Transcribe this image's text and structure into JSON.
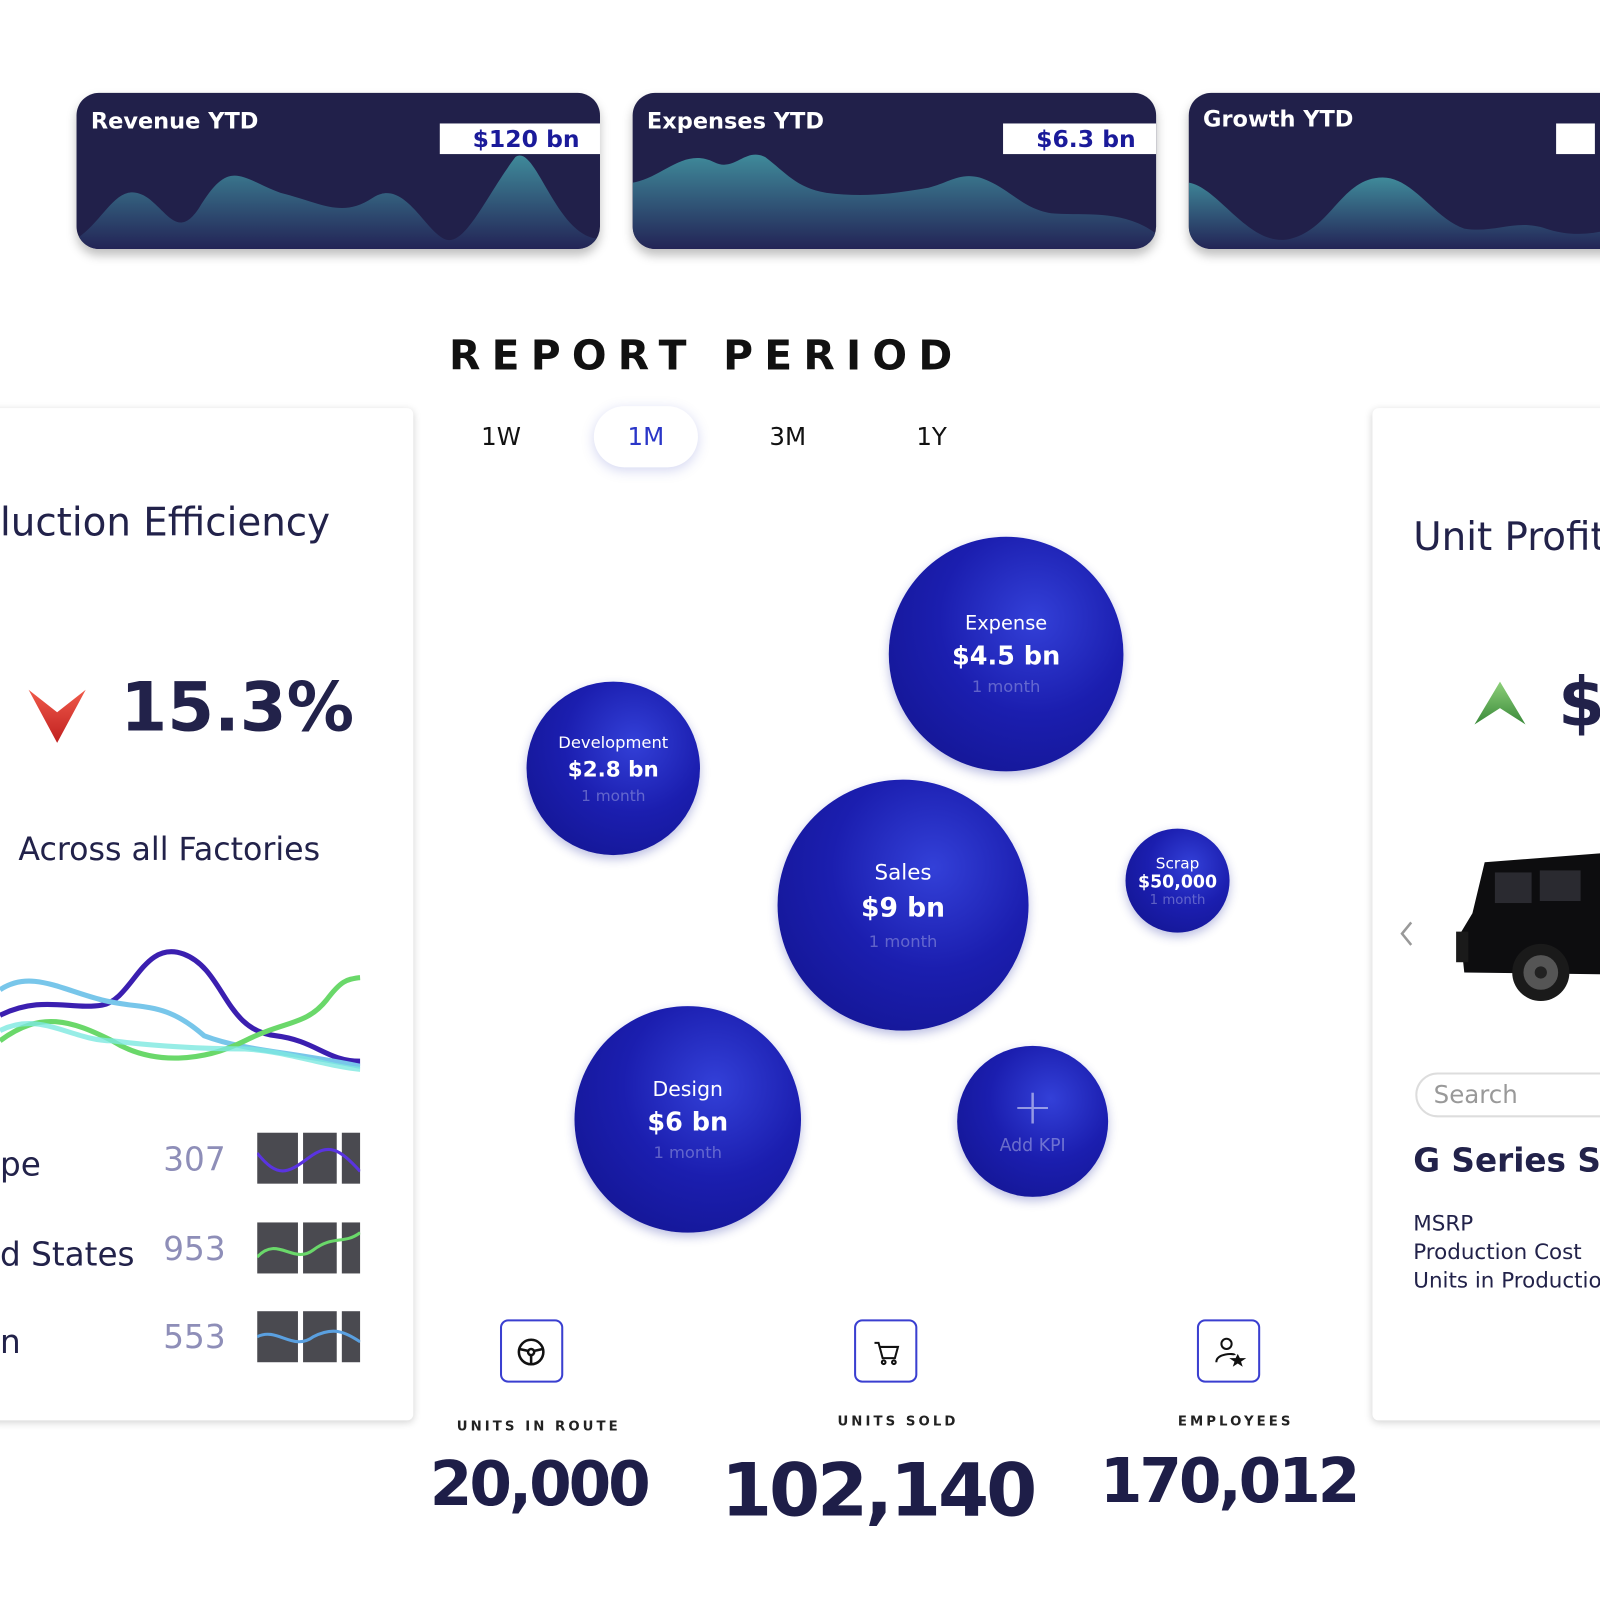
{
  "kpi_cards": [
    {
      "title": "Revenue YTD",
      "value": "$120 bn"
    },
    {
      "title": "Expenses YTD",
      "value": "$6.3 bn"
    },
    {
      "title": "Growth YTD"
    }
  ],
  "report_period": {
    "title": "REPORT PERIOD",
    "tabs": [
      "1W",
      "1M",
      "3M",
      "1Y"
    ],
    "selected_tab": 1
  },
  "efficiency_panel": {
    "title": "luction Efficiency",
    "value": "15.3%",
    "subtitle": "Across all Factories",
    "rows": [
      {
        "label": "pe",
        "value": "307"
      },
      {
        "label": "d States",
        "value": "953"
      },
      {
        "label": "n",
        "value": "553"
      }
    ]
  },
  "bubbles": [
    {
      "label": "Expense",
      "value": "$4.5 bn",
      "period": "1 month"
    },
    {
      "label": "Development",
      "value": "$2.8 bn",
      "period": "1 month"
    },
    {
      "label": "Sales",
      "value": "$9 bn",
      "period": "1 month"
    },
    {
      "label": "Scrap",
      "value": "$50,000",
      "period": "1 month"
    },
    {
      "label": "Design",
      "value": "$6 bn",
      "period": "1 month"
    }
  ],
  "add_kpi": "Add KPI",
  "stats": [
    {
      "label": "UNITS IN ROUTE",
      "value": "20,000"
    },
    {
      "label": "UNITS SOLD",
      "value": "102,140"
    },
    {
      "label": "EMPLOYEES",
      "value": "170,012"
    }
  ],
  "unit_profit_panel": {
    "title": "Unit Profit",
    "value": "$",
    "search_placeholder": "Search",
    "model": "G Series SU",
    "specs": [
      "MSRP",
      "Production Cost",
      "Units in Production"
    ]
  }
}
